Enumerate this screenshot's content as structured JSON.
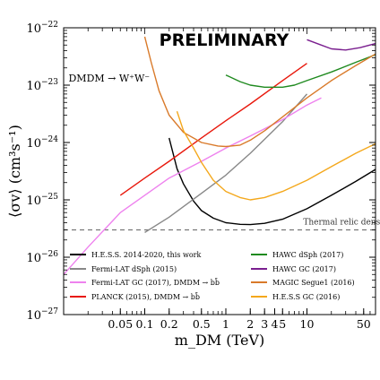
{
  "chart_data": {
    "type": "line",
    "watermark": "PRELIMINARY",
    "xlabel": "m_DM (TeV)",
    "ylabel": "⟨σv⟩ (cm³s⁻¹)",
    "xscale": "log",
    "yscale": "log",
    "xlim": [
      0.01,
      70
    ],
    "ylim": [
      1e-27,
      1e-22
    ],
    "x_ticks": [
      {
        "v": 0.05,
        "label": "0.05"
      },
      {
        "v": 0.1,
        "label": "0.1"
      },
      {
        "v": 0.2,
        "label": "0.2"
      },
      {
        "v": 0.5,
        "label": "0.5"
      },
      {
        "v": 1,
        "label": "1"
      },
      {
        "v": 2,
        "label": "2"
      },
      {
        "v": 3,
        "label": "3"
      },
      {
        "v": 4,
        "label": "4"
      },
      {
        "v": 5,
        "label": "5"
      },
      {
        "v": 10,
        "label": "10"
      },
      {
        "v": 50,
        "label": "50"
      }
    ],
    "y_ticks": [
      {
        "exp": -27,
        "label": "10",
        "sup": "−27"
      },
      {
        "exp": -26,
        "label": "10",
        "sup": "−26"
      },
      {
        "exp": -25,
        "label": "10",
        "sup": "−25"
      },
      {
        "exp": -24,
        "label": "10",
        "sup": "−24"
      },
      {
        "exp": -23,
        "label": "10",
        "sup": "−23"
      },
      {
        "exp": -22,
        "label": "10",
        "sup": "−22"
      }
    ],
    "annotations": [
      {
        "text": "DMDM → W⁺W⁻",
        "x": 0.0115,
        "y": 1.15e-23
      },
      {
        "text": "Thermal relic density",
        "x": 9.0,
        "y": 3.7e-26
      }
    ],
    "reference_line": {
      "name": "Thermal relic density",
      "y": 3e-26,
      "color": "#777777",
      "style": "dashed"
    },
    "series": [
      {
        "name": "H.E.S.S. 2014-2020, this work",
        "color": "#000000",
        "x": [
          0.2,
          0.25,
          0.3,
          0.4,
          0.5,
          0.7,
          1.0,
          1.5,
          2.0,
          3.0,
          5.0,
          10,
          20,
          40,
          70
        ],
        "y": [
          1.2e-24,
          3.5e-25,
          1.9e-25,
          9.5e-26,
          6.5e-26,
          4.8e-26,
          4e-26,
          3.75e-26,
          3.7e-26,
          3.9e-26,
          4.6e-26,
          7e-26,
          1.2e-25,
          2.1e-25,
          3.4e-25
        ]
      },
      {
        "name": "Fermi-LAT dSph (2015)",
        "color": "#888888",
        "x": [
          0.1,
          0.2,
          0.5,
          1,
          2,
          5,
          10
        ],
        "y": [
          2.7e-26,
          5e-26,
          1.3e-25,
          2.7e-25,
          6.5e-25,
          2.3e-24,
          7e-24
        ]
      },
      {
        "name": "Fermi-LAT GC (2017), DMDM → bb̄",
        "color": "#ee82ee",
        "x": [
          0.01,
          0.02,
          0.05,
          0.1,
          0.2,
          0.5,
          1,
          2,
          5,
          10,
          15
        ],
        "y": [
          5e-27,
          1.5e-26,
          6e-26,
          1.2e-25,
          2.4e-25,
          4.7e-25,
          8e-25,
          1.3e-24,
          2.5e-24,
          4.5e-24,
          6e-24
        ]
      },
      {
        "name": "PLANCK (2015), DMDM → bb̄",
        "color": "#e8180c",
        "x": [
          0.05,
          0.1,
          0.2,
          0.5,
          1,
          2,
          5,
          10
        ],
        "y": [
          1.2e-25,
          2.4e-25,
          4.7e-25,
          1.2e-24,
          2.4e-24,
          4.7e-24,
          1.2e-23,
          2.4e-23
        ]
      },
      {
        "name": "HAWC dSph (2017)",
        "color": "#1f8a1f",
        "x": [
          1,
          1.5,
          2,
          3,
          5,
          7,
          10,
          20,
          40,
          70
        ],
        "y": [
          1.5e-23,
          1.15e-23,
          1e-23,
          9.2e-24,
          9.2e-24,
          1e-23,
          1.2e-23,
          1.7e-23,
          2.5e-23,
          3.4e-23
        ]
      },
      {
        "name": "HAWC GC (2017)",
        "color": "#7a1f8f",
        "x": [
          10,
          15,
          20,
          30,
          45,
          70
        ],
        "y": [
          6.2e-23,
          5e-23,
          4.3e-23,
          4.1e-23,
          4.5e-23,
          5.3e-23
        ]
      },
      {
        "name": "MAGIC Segue1 (2016)",
        "color": "#d97a2a",
        "x": [
          0.1,
          0.12,
          0.15,
          0.2,
          0.3,
          0.5,
          0.8,
          1,
          1.5,
          2,
          3,
          5,
          10,
          20,
          40,
          70
        ],
        "y": [
          7e-23,
          2.5e-23,
          8e-24,
          3e-24,
          1.5e-24,
          1e-24,
          8.7e-25,
          8.5e-25,
          9e-25,
          1.1e-24,
          1.6e-24,
          2.8e-24,
          6e-24,
          1.2e-23,
          2.2e-23,
          3.5e-23
        ]
      },
      {
        "name": "H.E.S.S GC (2016)",
        "color": "#f4a81c",
        "x": [
          0.25,
          0.3,
          0.4,
          0.5,
          0.7,
          1,
          1.5,
          2,
          3,
          5,
          10,
          20,
          40,
          70
        ],
        "y": [
          3.5e-24,
          1.6e-24,
          8e-25,
          4.5e-25,
          2.2e-25,
          1.4e-25,
          1.1e-25,
          1e-25,
          1.1e-25,
          1.4e-25,
          2.2e-25,
          3.8e-25,
          6.5e-25,
          9.5e-25
        ]
      }
    ],
    "legend": {
      "placement": "bottom",
      "columns": 2
    }
  }
}
